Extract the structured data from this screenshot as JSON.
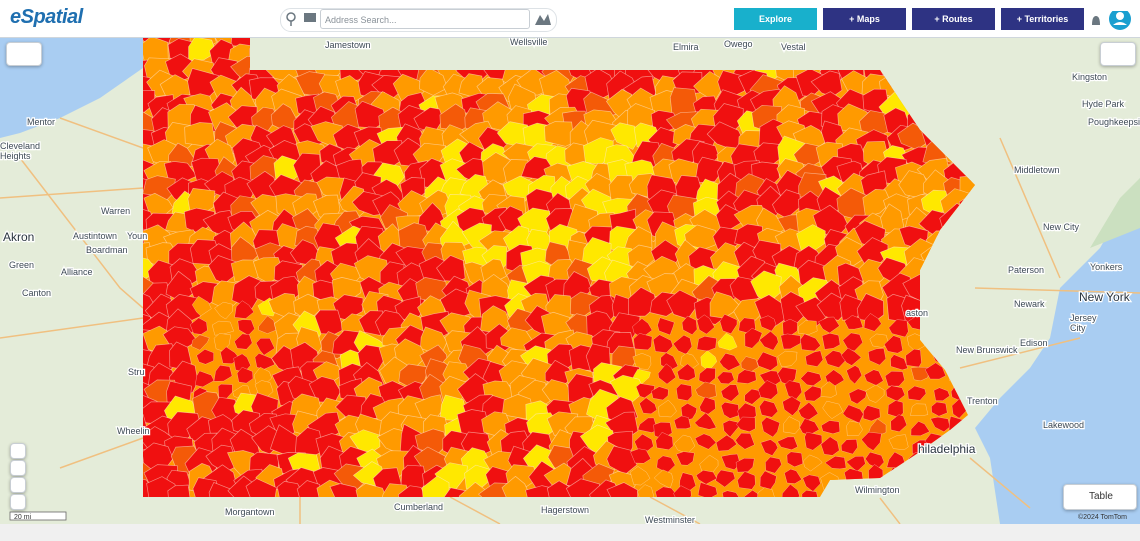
{
  "header": {
    "logo": "eSpatial",
    "search_placeholder": "Address Search...",
    "buttons": [
      "Explore",
      "+ Maps",
      "+ Routes",
      "+ Territories"
    ]
  },
  "map": {
    "labels": [
      "Jamestown",
      "Wellsville",
      "Elmira",
      "Owego",
      "Vestal",
      "Kingston",
      "Hyde Park",
      "Poughkeepsie",
      "Mentor",
      "Cleveland",
      "Heights",
      "Warren",
      "Austintown",
      "Boardman",
      "Youn",
      "Akron",
      "Green",
      "Alliance",
      "Canton",
      "Middletown",
      "New City",
      "Yonkers",
      "Paterson",
      "Newark",
      "New York",
      "Jersey",
      "City",
      "New Brunswick",
      "Edison",
      "aston",
      "Trenton",
      "Lakewood",
      "hiladelphia",
      "Wilmington",
      "Morgantown",
      "Cumberland",
      "Hagerstown",
      "Westminster",
      "Wheelin",
      "Stru"
    ],
    "scale": "20 mi",
    "attribution": "©2024 TomTom"
  },
  "table_button": "Table"
}
